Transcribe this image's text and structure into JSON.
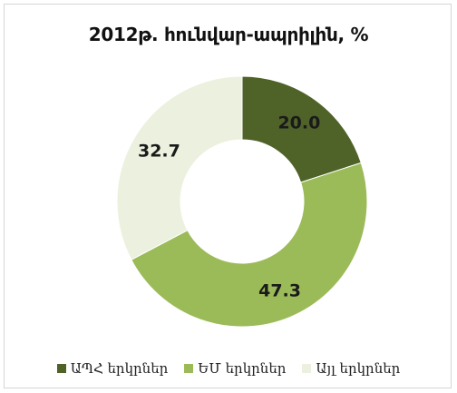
{
  "chart_data": {
    "type": "donut",
    "title": "2012թ. հունվար-ապրիլին, %",
    "categories": [
      "ԱՊՀ երկրներ",
      "ԵՄ երկրներ",
      "Այլ երկրներ"
    ],
    "values": [
      20.0,
      47.3,
      32.7
    ],
    "value_labels": [
      "20.0",
      "47.3",
      "32.7"
    ],
    "colors": [
      "#4f6228",
      "#9bbb59",
      "#ebf1de"
    ],
    "legend_position": "bottom",
    "grid": false
  }
}
